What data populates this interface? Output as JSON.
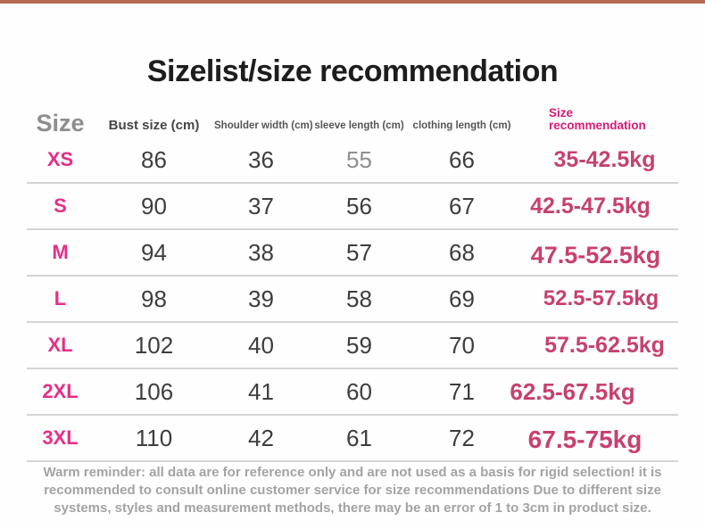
{
  "page": {
    "title": "Sizelist/size recommendation"
  },
  "table": {
    "headers": {
      "size": "Size",
      "bust": "Bust size (cm)",
      "shoulder": "Shoulder width (cm)",
      "sleeve": "sleeve length (cm)",
      "clothing": "clothing length (cm)",
      "recommendation": "Size recommendation"
    },
    "rows": [
      {
        "size": "XS",
        "bust": "86",
        "shoulder": "36",
        "sleeve": "55",
        "clothing": "66",
        "recommendation": "35-42.5kg"
      },
      {
        "size": "S",
        "bust": "90",
        "shoulder": "37",
        "sleeve": "56",
        "clothing": "67",
        "recommendation": "42.5-47.5kg"
      },
      {
        "size": "M",
        "bust": "94",
        "shoulder": "38",
        "sleeve": "57",
        "clothing": "68",
        "recommendation": "47.5-52.5kg"
      },
      {
        "size": "L",
        "bust": "98",
        "shoulder": "39",
        "sleeve": "58",
        "clothing": "69",
        "recommendation": "52.5-57.5kg"
      },
      {
        "size": "XL",
        "bust": "102",
        "shoulder": "40",
        "sleeve": "59",
        "clothing": "70",
        "recommendation": "57.5-62.5kg"
      },
      {
        "size": "2XL",
        "bust": "106",
        "shoulder": "41",
        "sleeve": "60",
        "clothing": "71",
        "recommendation": "62.5-67.5kg"
      },
      {
        "size": "3XL",
        "bust": "110",
        "shoulder": "42",
        "sleeve": "61",
        "clothing": "72",
        "recommendation": "67.5-75kg"
      }
    ]
  },
  "reminder": {
    "lines": [
      "Warm reminder: all data are for reference only and are not used as a basis for rigid selection! it is",
      "recommended to consult online customer service for size recommendations Due to different size",
      "systems, styles and measurement methods, there may be an error of 1 to 3cm in product size."
    ]
  },
  "colors": {
    "top_bar": "#b76a52",
    "header_pink": "#d81b74",
    "size_label_pink": "#e62e87",
    "recommendation_pink": "#c64170",
    "number_dark": "#3d3d3d",
    "reminder_gray": "#a3a3a3"
  },
  "chart_data": {
    "type": "table",
    "title": "Sizelist/size recommendation",
    "columns": [
      "Size",
      "Bust size (cm)",
      "Shoulder width (cm)",
      "sleeve length (cm)",
      "clothing length (cm)",
      "Size recommendation"
    ],
    "rows": [
      [
        "XS",
        86,
        36,
        55,
        66,
        "35-42.5kg"
      ],
      [
        "S",
        90,
        37,
        56,
        67,
        "42.5-47.5kg"
      ],
      [
        "M",
        94,
        38,
        57,
        68,
        "47.5-52.5kg"
      ],
      [
        "L",
        98,
        39,
        58,
        69,
        "52.5-57.5kg"
      ],
      [
        "XL",
        102,
        40,
        59,
        70,
        "57.5-62.5kg"
      ],
      [
        "2XL",
        106,
        41,
        60,
        71,
        "62.5-67.5kg"
      ],
      [
        "3XL",
        110,
        42,
        61,
        72,
        "67.5-75kg"
      ]
    ],
    "note": "Warm reminder: all data are for reference only and are not used as a basis for rigid selection! it is recommended to consult online customer service for size recommendations Due to different size systems, styles and measurement methods, there may be an error of 1 to 3cm in product size."
  }
}
